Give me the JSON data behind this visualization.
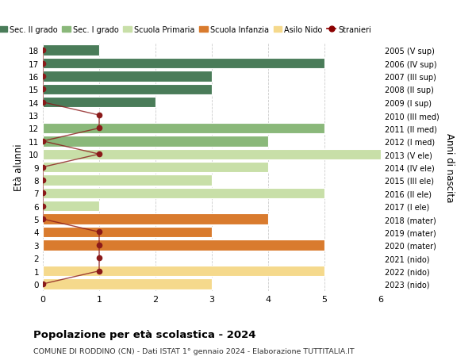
{
  "ages": [
    18,
    17,
    16,
    15,
    14,
    13,
    12,
    11,
    10,
    9,
    8,
    7,
    6,
    5,
    4,
    3,
    2,
    1,
    0
  ],
  "labels_right": [
    "2005 (V sup)",
    "2006 (IV sup)",
    "2007 (III sup)",
    "2008 (II sup)",
    "2009 (I sup)",
    "2010 (III med)",
    "2011 (II med)",
    "2012 (I med)",
    "2013 (V ele)",
    "2014 (IV ele)",
    "2015 (III ele)",
    "2016 (II ele)",
    "2017 (I ele)",
    "2018 (mater)",
    "2019 (mater)",
    "2020 (mater)",
    "2021 (nido)",
    "2022 (nido)",
    "2023 (nido)"
  ],
  "bar_values": [
    1,
    5,
    3,
    3,
    2,
    0,
    5,
    4,
    6,
    4,
    3,
    5,
    1,
    4,
    3,
    5,
    0,
    5,
    3
  ],
  "bar_colors": [
    "#4a7c59",
    "#4a7c59",
    "#4a7c59",
    "#4a7c59",
    "#4a7c59",
    "#8ab87a",
    "#8ab87a",
    "#8ab87a",
    "#c8dfa8",
    "#c8dfa8",
    "#c8dfa8",
    "#c8dfa8",
    "#c8dfa8",
    "#d97b2e",
    "#d97b2e",
    "#d97b2e",
    "#f5d98c",
    "#f5d98c",
    "#f5d98c"
  ],
  "stranieri_x": [
    0,
    0,
    0,
    0,
    0,
    1,
    1,
    0,
    1,
    0,
    0,
    0,
    0,
    0,
    1,
    1,
    1,
    1,
    0
  ],
  "legend_labels": [
    "Sec. II grado",
    "Sec. I grado",
    "Scuola Primaria",
    "Scuola Infanzia",
    "Asilo Nido",
    "Stranieri"
  ],
  "legend_colors": [
    "#4a7c59",
    "#8ab87a",
    "#c8dfa8",
    "#d97b2e",
    "#f5d98c",
    "#8b0000"
  ],
  "title": "Popolazione per età scolastica - 2024",
  "subtitle": "COMUNE DI RODDINO (CN) - Dati ISTAT 1° gennaio 2024 - Elaborazione TUTTITALIA.IT",
  "ylabel": "Età alunni",
  "ylabel_right": "Anni di nascita",
  "xlim": [
    0,
    6
  ],
  "xticks": [
    0,
    1,
    2,
    3,
    4,
    5,
    6
  ],
  "background_color": "#ffffff",
  "grid_color": "#cccccc"
}
